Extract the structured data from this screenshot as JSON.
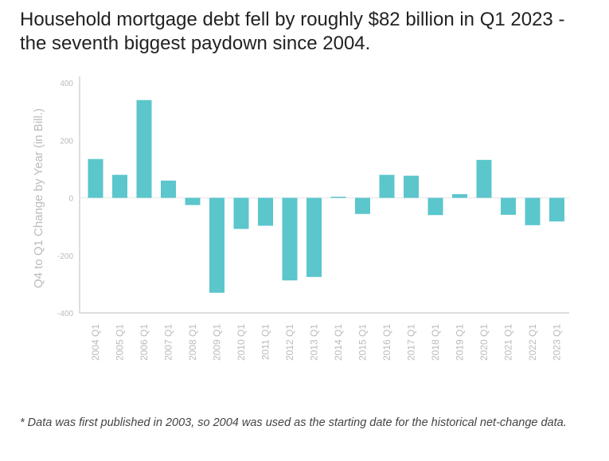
{
  "title": "Household mortgage debt fell by roughly $82 billion in Q1 2023 - the seventh biggest paydown since 2004.",
  "footnote": "* Data was first published in 2003, so 2004 was used as the starting date for the historical net-change data.",
  "colors": {
    "bar": "#5bc6cc",
    "axis": "#bdbdbd",
    "tick_label": "#bbbbbb",
    "ylabel": "#bbbbbb"
  },
  "chart_data": {
    "type": "bar",
    "title": "Household mortgage debt fell by roughly $82 billion in Q1 2023 - the seventh biggest paydown since 2004.",
    "xlabel": "",
    "ylabel": "Q4 to Q1 Change by Year (in Bill.)",
    "ylim": [
      -400,
      400
    ],
    "yticks": [
      -400,
      -200,
      0,
      200,
      400
    ],
    "grid": false,
    "legend": "none",
    "categories": [
      "2004 Q1",
      "2005 Q1",
      "2006 Q1",
      "2007 Q1",
      "2008 Q1",
      "2009 Q1",
      "2010 Q1",
      "2011 Q1",
      "2012 Q1",
      "2013 Q1",
      "2014 Q1",
      "2015 Q1",
      "2016 Q1",
      "2017 Q1",
      "2018 Q1",
      "2019 Q1",
      "2020 Q1",
      "2021 Q1",
      "2022 Q1",
      "2023 Q1"
    ],
    "values": [
      135,
      80,
      340,
      60,
      -25,
      -330,
      -108,
      -97,
      -287,
      -275,
      4,
      -56,
      80,
      77,
      -60,
      13,
      132,
      -59,
      -95,
      -82
    ]
  }
}
